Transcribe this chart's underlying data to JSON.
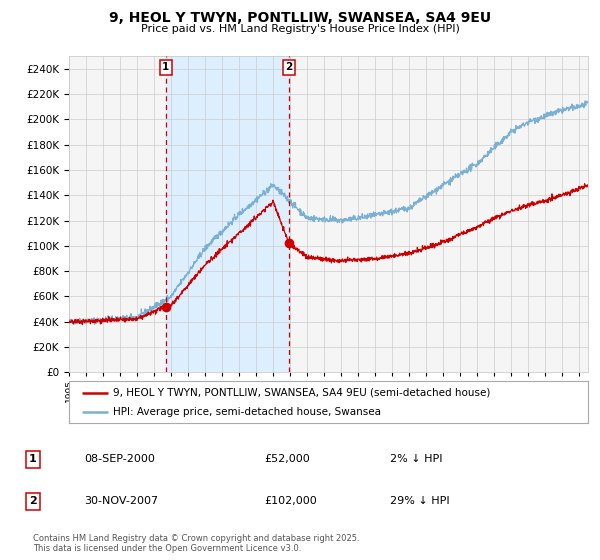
{
  "title": "9, HEOL Y TWYN, PONTLLIW, SWANSEA, SA4 9EU",
  "subtitle": "Price paid vs. HM Land Registry's House Price Index (HPI)",
  "legend_label_red": "9, HEOL Y TWYN, PONTLLIW, SWANSEA, SA4 9EU (semi-detached house)",
  "legend_label_blue": "HPI: Average price, semi-detached house, Swansea",
  "transaction1": {
    "num": "1",
    "date": "08-SEP-2000",
    "price": "£52,000",
    "hpi": "2% ↓ HPI",
    "year": 2000.69
  },
  "transaction2": {
    "num": "2",
    "date": "30-NOV-2007",
    "price": "£102,000",
    "hpi": "29% ↓ HPI",
    "year": 2007.92
  },
  "copyright": "Contains HM Land Registry data © Crown copyright and database right 2025.\nThis data is licensed under the Open Government Licence v3.0.",
  "ylim": [
    0,
    250000
  ],
  "xlim_start": 1995.0,
  "xlim_end": 2025.5,
  "background_color": "#ffffff",
  "plot_bg_color": "#f5f5f5",
  "grid_color": "#cccccc",
  "highlight_color": "#ddeeff",
  "red_color": "#cc0000",
  "blue_color": "#7ab0d4",
  "dashed_color": "#cc0000",
  "hpi_base_years": [
    1995,
    1997,
    1999,
    2001,
    2003,
    2005,
    2007,
    2009,
    2011,
    2013,
    2015,
    2017,
    2019,
    2021,
    2022,
    2024,
    2025.5
  ],
  "hpi_base_vals": [
    40000,
    41500,
    43500,
    60000,
    98000,
    125000,
    148000,
    122000,
    120000,
    124000,
    130000,
    148000,
    165000,
    190000,
    198000,
    207000,
    212000
  ],
  "prop_base_years": [
    1995,
    1997,
    1999,
    2000.69,
    2001,
    2003,
    2005,
    2007,
    2007.92,
    2009,
    2011,
    2013,
    2015,
    2017,
    2019,
    2021,
    2022,
    2024,
    2025.5
  ],
  "prop_base_vals": [
    40000,
    41000,
    42000,
    52000,
    53000,
    85000,
    110000,
    135000,
    102000,
    91000,
    88000,
    90000,
    94000,
    103000,
    115000,
    128000,
    132000,
    140000,
    148000
  ],
  "t1_price": 52000,
  "t2_price": 102000,
  "n_points": 1500,
  "noise_hpi": 1200,
  "noise_prop": 900,
  "random_seed": 42
}
